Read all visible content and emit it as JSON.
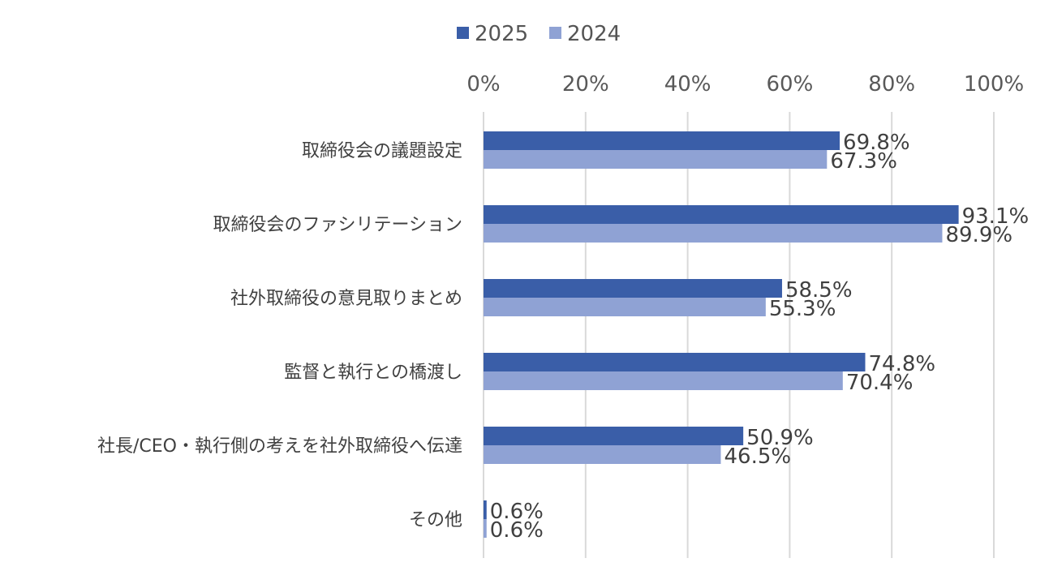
{
  "chart_data": {
    "type": "bar",
    "orientation": "horizontal",
    "categories": [
      "取締役会の議題設定",
      "取締役会のファシリテーション",
      "社外取締役の意見取りまとめ",
      "監督と執行との橋渡し",
      "社長/CEO・執行側の考えを社外取締役へ伝達",
      "その他"
    ],
    "series": [
      {
        "name": "2025",
        "values": [
          69.8,
          93.1,
          58.5,
          74.8,
          50.9,
          0.6
        ],
        "labels": [
          "69.8%",
          "93.1%",
          "58.5%",
          "74.8%",
          "50.9%",
          "0.6%"
        ]
      },
      {
        "name": "2024",
        "values": [
          67.3,
          89.9,
          55.3,
          70.4,
          46.5,
          0.6
        ],
        "labels": [
          "67.3%",
          "89.9%",
          "55.3%",
          "70.4%",
          "46.5%",
          "0.6%"
        ]
      }
    ],
    "ticks": [
      "0%",
      "20%",
      "40%",
      "60%",
      "80%",
      "100%"
    ],
    "xlim": [
      0,
      100
    ],
    "x_axis_position": "top",
    "grid": true,
    "legend": "top-center",
    "colors": {
      "2025": "#3a5ea8",
      "2024": "#8fa2d4",
      "grid": "#d9d9d9"
    }
  }
}
